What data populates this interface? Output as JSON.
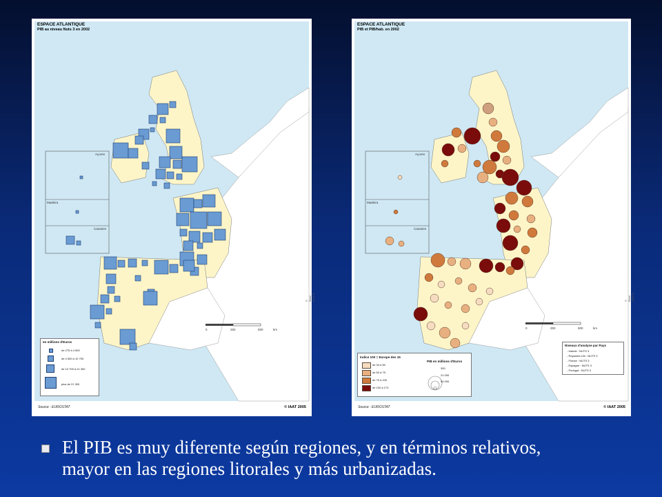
{
  "left_map": {
    "title": "ESPACE ATLANTIQUE",
    "subtitle": "PIB au niveau Nuts 3 en 2002",
    "source": "Source : EUROSTAT",
    "copyright": "© IAAT 2005",
    "credit": "© Base GISCO",
    "insets": [
      "Açores",
      "Madeira",
      "Canaries"
    ],
    "scale": [
      "0",
      "250",
      "500",
      "km"
    ],
    "legend": {
      "title": "en millions d'Euros",
      "rows": [
        "de 275 à 4 500",
        "de 4 500 à 10 700",
        "de 10 700 à 21 300",
        "plus de 21 300"
      ]
    }
  },
  "right_map": {
    "title": "ESPACE ATLANTIQUE",
    "subtitle": "PIB et PIB/hab. en 2002",
    "source": "Source : EUROSTAT",
    "copyright": "© IAAT 2005",
    "credit": "© Base GISCO",
    "insets": [
      "Açores",
      "Madeira",
      "Canaries"
    ],
    "scale": [
      "0",
      "250",
      "500",
      "km"
    ],
    "legend_index": {
      "title": "Indice 100 = Europe des 15",
      "rows": [
        "de 34 à 50",
        "de 50 à 75",
        "de 75 à 100",
        "de 100 à 173"
      ],
      "colors": [
        "#f6dcc0",
        "#e8b080",
        "#cf7a3c",
        "#7a0c0c"
      ]
    },
    "legend_pib": {
      "title": "PIB en millions d'Euros",
      "values": [
        "300",
        "21 000",
        "50 000"
      ]
    },
    "levels": {
      "title": "Niveaux d'analyse par Pays",
      "rows": [
        "- Irlande : NUTS 3",
        "- Royaume-Uni : NUTS 3",
        "- France : NUTS 3",
        "- Espagne : NUTS 3",
        "- Portugal : NUTS 3"
      ]
    }
  },
  "colors": {
    "sea": "#cfe8f4",
    "land": "#ffffff",
    "atlantic_region": "#fdf5c8",
    "square_fill": "#6a9bd2",
    "square_stroke": "#1e3f73"
  },
  "bullet": {
    "line1": "El PIB es muy diferente según regiones, y en términos relativos,",
    "line2": "mayor en las regiones litorales y más urbanizadas."
  }
}
